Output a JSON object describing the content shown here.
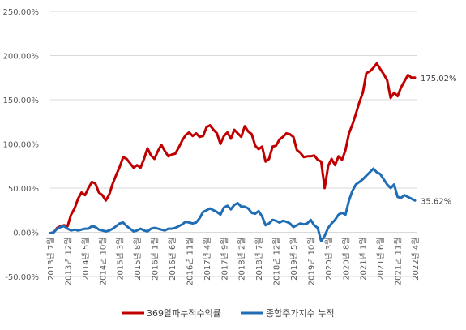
{
  "chart_data": {
    "type": "line",
    "title": "",
    "xlabel": "",
    "ylabel": "",
    "ylim": [
      -0.5,
      2.5
    ],
    "yticks": [
      -0.5,
      0.0,
      0.5,
      1.0,
      1.5,
      2.0,
      2.5
    ],
    "ytick_labels": [
      "-50.00%",
      "0.00%",
      "50.00%",
      "100.00%",
      "150.00%",
      "200.00%",
      "250.00%"
    ],
    "grid": true,
    "legend_position": "bottom",
    "xtick_labels": [
      "2013년 7월",
      "2013년 12월",
      "2014년 5월",
      "2014년 10월",
      "2015년 3월",
      "2015년 8월",
      "2016년 1월",
      "2016년 6월",
      "2016년 11월",
      "2017년 4월",
      "2017년 9월",
      "2018년 2월",
      "2018년 7월",
      "2018년 12월",
      "2019년 5월",
      "2019년 10월",
      "2020년 3월",
      "2020년 8월",
      "2021년 1월",
      "2021년 6월",
      "2021년 11월",
      "2022년 4월"
    ],
    "series": [
      {
        "name": "369알파누적수익률",
        "color": "#c00000",
        "end_label": "175.02%",
        "values": [
          -0.01,
          0.0,
          0.05,
          0.07,
          0.08,
          0.07,
          0.2,
          0.27,
          0.38,
          0.45,
          0.42,
          0.5,
          0.57,
          0.55,
          0.45,
          0.42,
          0.36,
          0.43,
          0.55,
          0.65,
          0.74,
          0.85,
          0.83,
          0.78,
          0.73,
          0.76,
          0.73,
          0.83,
          0.95,
          0.87,
          0.83,
          0.92,
          0.99,
          0.92,
          0.86,
          0.88,
          0.89,
          0.96,
          1.04,
          1.1,
          1.13,
          1.09,
          1.12,
          1.08,
          1.09,
          1.19,
          1.21,
          1.16,
          1.12,
          1.0,
          1.09,
          1.13,
          1.06,
          1.16,
          1.12,
          1.08,
          1.2,
          1.14,
          1.11,
          0.98,
          0.94,
          0.97,
          0.8,
          0.83,
          0.97,
          0.98,
          1.05,
          1.08,
          1.12,
          1.11,
          1.08,
          0.93,
          0.9,
          0.85,
          0.86,
          0.86,
          0.87,
          0.82,
          0.8,
          0.5,
          0.75,
          0.83,
          0.76,
          0.86,
          0.82,
          0.93,
          1.12,
          1.22,
          1.34,
          1.47,
          1.58,
          1.8,
          1.82,
          1.86,
          1.91,
          1.85,
          1.79,
          1.72,
          1.52,
          1.58,
          1.54,
          1.64,
          1.71,
          1.78,
          1.75,
          1.75
        ]
      },
      {
        "name": "종합주가지수 누적",
        "color": "#1f6db4",
        "end_label": "35.62%",
        "values": [
          -0.01,
          0.0,
          0.04,
          0.06,
          0.07,
          0.04,
          0.02,
          0.03,
          0.02,
          0.03,
          0.04,
          0.04,
          0.07,
          0.06,
          0.03,
          0.02,
          0.01,
          0.02,
          0.04,
          0.07,
          0.1,
          0.11,
          0.07,
          0.04,
          0.01,
          0.02,
          0.04,
          0.02,
          0.01,
          0.04,
          0.05,
          0.04,
          0.03,
          0.02,
          0.04,
          0.04,
          0.05,
          0.07,
          0.09,
          0.12,
          0.11,
          0.1,
          0.11,
          0.16,
          0.23,
          0.25,
          0.27,
          0.25,
          0.23,
          0.2,
          0.28,
          0.3,
          0.26,
          0.31,
          0.33,
          0.29,
          0.29,
          0.27,
          0.22,
          0.21,
          0.24,
          0.18,
          0.08,
          0.1,
          0.14,
          0.13,
          0.11,
          0.13,
          0.12,
          0.1,
          0.06,
          0.08,
          0.1,
          0.09,
          0.1,
          0.14,
          0.08,
          0.05,
          -0.1,
          -0.04,
          0.05,
          0.1,
          0.14,
          0.2,
          0.22,
          0.2,
          0.36,
          0.47,
          0.54,
          0.57,
          0.6,
          0.64,
          0.68,
          0.72,
          0.68,
          0.66,
          0.6,
          0.54,
          0.5,
          0.54,
          0.4,
          0.39,
          0.42,
          0.4,
          0.38,
          0.36
        ]
      }
    ]
  }
}
